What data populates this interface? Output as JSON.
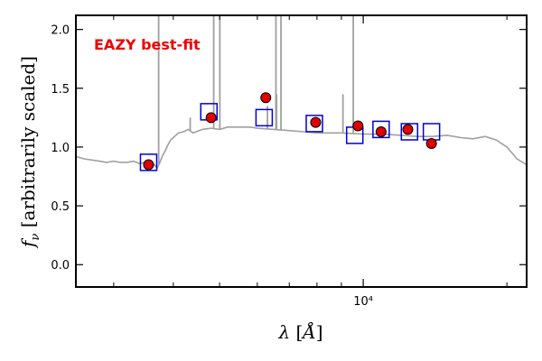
{
  "chart_data": {
    "type": "scatter",
    "title": "",
    "annotation": "EAZY best-fit",
    "xlabel": "λ [Å]",
    "ylabel": "f_ν [arbitrarily scaled]",
    "xscale": "log",
    "xlim": [
      2500,
      22000
    ],
    "ylim": [
      -0.19,
      2.12
    ],
    "yticks": [
      0.0,
      0.5,
      1.0,
      1.5,
      2.0
    ],
    "ytick_labels": [
      "0.0",
      "0.5",
      "1.0",
      "1.5",
      "2.0"
    ],
    "xtick_major": 10000,
    "xtick_major_label": "10⁴",
    "xtick_minor": [
      3000,
      4000,
      5000,
      6000,
      7000,
      8000,
      9000,
      20000
    ],
    "grid": false,
    "colors": {
      "sed": "#a0a0a0",
      "observed_fill": "#e00000",
      "model_box": "#0000dd",
      "annotation": "#ee0000"
    },
    "series": [
      {
        "kind": "line",
        "x": [
          2500,
          2600,
          2700,
          2800,
          2900,
          3000,
          3100,
          3200,
          3300,
          3400,
          3500,
          3600,
          3650,
          3700,
          3750,
          3800,
          3850,
          3900,
          3950,
          4000,
          4100,
          4200,
          4300,
          4400,
          4600,
          4800,
          5000,
          5200,
          5500,
          5800,
          6000,
          6500,
          7000,
          7500,
          8000,
          9000,
          10000,
          11000,
          12000,
          13000,
          14000,
          15000,
          16000,
          17000,
          18000,
          19000,
          20000,
          21000,
          22000
        ],
        "y": [
          0.92,
          0.9,
          0.89,
          0.88,
          0.87,
          0.88,
          0.87,
          0.87,
          0.88,
          0.86,
          0.87,
          0.87,
          0.85,
          0.82,
          0.87,
          0.93,
          0.97,
          1.02,
          1.06,
          1.08,
          1.12,
          1.13,
          1.15,
          1.12,
          1.15,
          1.16,
          1.15,
          1.17,
          1.17,
          1.17,
          1.16,
          1.15,
          1.14,
          1.13,
          1.12,
          1.12,
          1.11,
          1.11,
          1.1,
          1.09,
          1.09,
          1.1,
          1.08,
          1.07,
          1.09,
          1.06,
          1.0,
          0.9,
          0.85
        ]
      },
      {
        "kind": "emission-lines",
        "lines": [
          {
            "x": 3727,
            "y": 2.12
          },
          {
            "x": 4340,
            "y": 1.25
          },
          {
            "x": 4861,
            "y": 2.12
          },
          {
            "x": 5007,
            "y": 2.12
          },
          {
            "x": 6300,
            "y": 1.35
          },
          {
            "x": 6563,
            "y": 2.12
          },
          {
            "x": 6583,
            "y": 1.45
          },
          {
            "x": 6725,
            "y": 2.12
          },
          {
            "x": 9069,
            "y": 1.45
          },
          {
            "x": 9532,
            "y": 2.12
          }
        ]
      },
      {
        "kind": "model-photometry",
        "marker": "open-square",
        "x": [
          3550,
          4750,
          6200,
          7900,
          9600,
          10900,
          12500,
          13900
        ],
        "y": [
          0.87,
          1.3,
          1.25,
          1.2,
          1.1,
          1.15,
          1.13,
          1.13
        ]
      },
      {
        "kind": "observed-photometry",
        "marker": "filled-circle",
        "x": [
          3550,
          4800,
          6250,
          7950,
          9750,
          10900,
          12400,
          13900
        ],
        "y": [
          0.85,
          1.25,
          1.42,
          1.21,
          1.18,
          1.13,
          1.15,
          1.03
        ]
      }
    ]
  }
}
